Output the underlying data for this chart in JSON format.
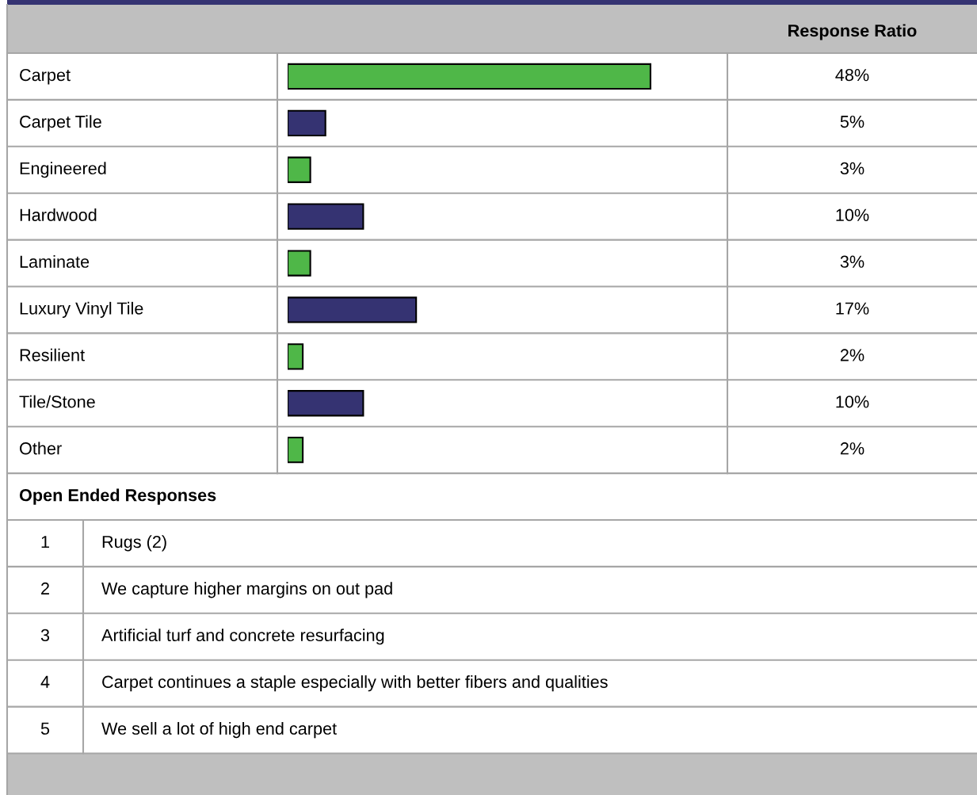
{
  "chart_data": {
    "type": "bar",
    "orientation": "horizontal",
    "categories": [
      "Carpet",
      "Carpet Tile",
      "Engineered",
      "Hardwood",
      "Laminate",
      "Luxury Vinyl Tile",
      "Resilient",
      "Tile/Stone",
      "Other"
    ],
    "values": [
      48,
      5,
      3,
      10,
      3,
      17,
      2,
      10,
      2
    ],
    "colors": [
      "#4fb748",
      "#353372",
      "#4fb748",
      "#353372",
      "#4fb748",
      "#353372",
      "#4fb748",
      "#353372",
      "#4fb748"
    ],
    "value_labels": [
      "48%",
      "5%",
      "3%",
      "10%",
      "3%",
      "17%",
      "2%",
      "10%",
      "2%"
    ],
    "annotations": [
      "Response Ratio",
      "Open Ended Responses",
      "1",
      "Rugs (2)",
      "2",
      "We capture higher margins on out pad",
      "3",
      "Artificial turf and concrete resurfacing",
      "4",
      "Carpet continues a staple especially with better fibers and qualities",
      "5",
      "We sell a lot of high end carpet"
    ]
  }
}
